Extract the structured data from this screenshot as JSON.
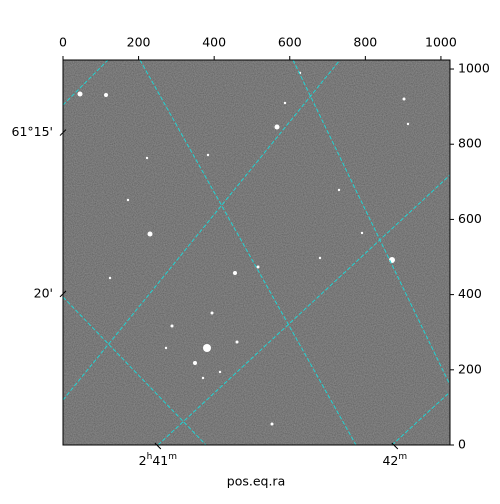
{
  "chart_data": {
    "type": "image",
    "xlabel": "pos.eq.ra",
    "xlim": [
      0,
      1024
    ],
    "ylim": [
      0,
      1024
    ],
    "xticks": [
      0,
      200,
      400,
      600,
      800,
      1000
    ],
    "yticks": [
      0,
      200,
      400,
      600,
      800,
      1000
    ],
    "ra_ticks": [
      {
        "value": 251,
        "label": "2h41m"
      },
      {
        "value": 878,
        "label": "42m"
      }
    ],
    "dec_ticks": [
      {
        "value": 831,
        "label": "61°15'"
      },
      {
        "value": 402,
        "label": "20'"
      }
    ]
  }
}
